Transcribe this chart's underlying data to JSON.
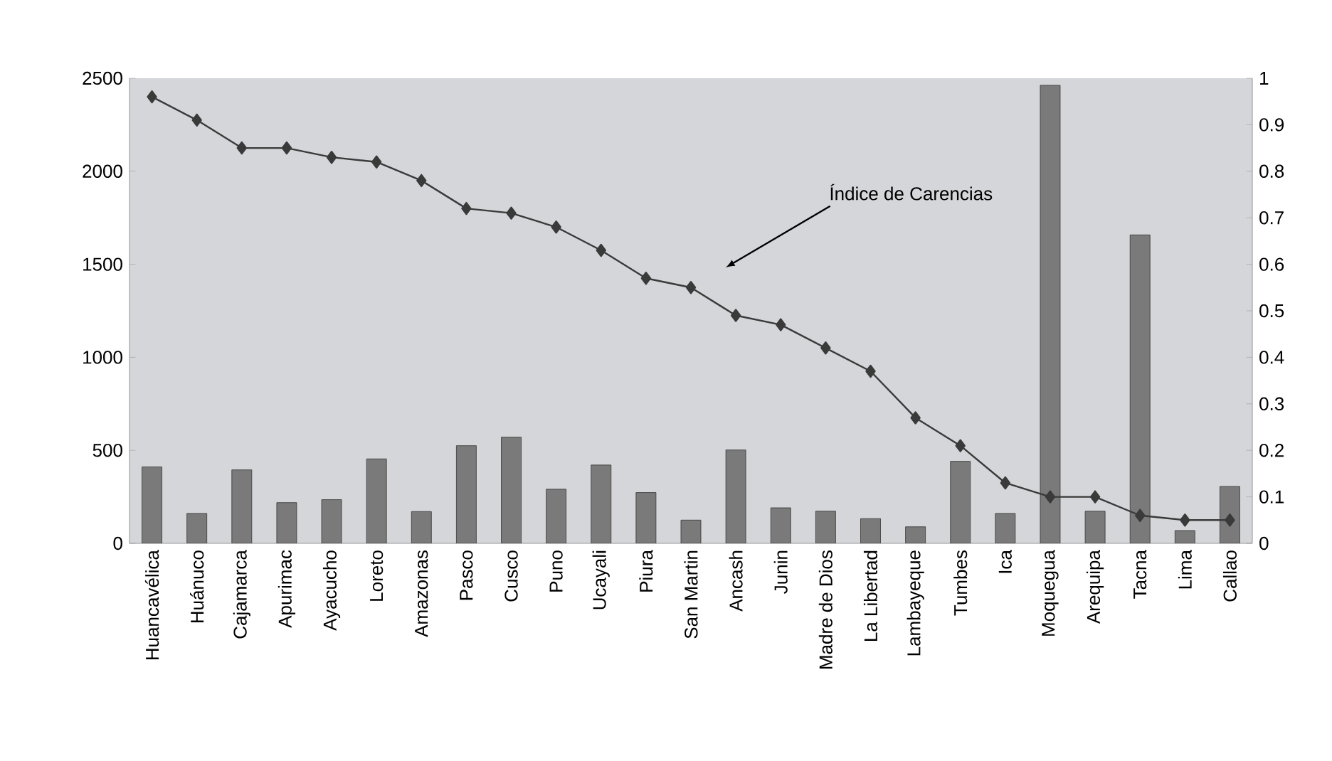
{
  "chart_data": {
    "type": "bar",
    "categories": [
      "Huancavélica",
      "Huánuco",
      "Cajamarca",
      "Apurimac",
      "Ayacucho",
      "Loreto",
      "Amazonas",
      "Pasco",
      "Cusco",
      "Puno",
      "Ucayali",
      "Piura",
      "San Martin",
      "Ancash",
      "Junin",
      "Madre de Dios",
      "La Libertad",
      "Lambayeque",
      "Tumbes",
      "Ica",
      "Moquegua",
      "Arequipa",
      "Tacna",
      "Lima",
      "Callao"
    ],
    "series": [
      {
        "color": "#7a7a7a",
        "values": [
          411,
          161,
          395,
          219,
          235,
          454,
          171,
          525,
          571,
          291,
          421,
          273,
          125,
          502,
          191,
          173,
          133,
          89,
          441,
          161,
          2462,
          173,
          1658,
          69,
          306
        ]
      },
      {
        "type": "line",
        "axis": "y2",
        "color": "#3a3a3a",
        "values": [
          0.96,
          0.91,
          0.85,
          0.85,
          0.83,
          0.82,
          0.78,
          0.72,
          0.71,
          0.68,
          0.63,
          0.57,
          0.55,
          0.49,
          0.47,
          0.42,
          0.37,
          0.27,
          0.21,
          0.13,
          0.1,
          0.1,
          0.06,
          0.05,
          0.05
        ]
      }
    ],
    "ylim": [
      0,
      2500
    ],
    "yticks": [
      0,
      500,
      1000,
      1500,
      2000,
      2500
    ],
    "y2lim": [
      0,
      1
    ],
    "y2ticks": [
      0,
      0.1,
      0.2,
      0.3,
      0.4,
      0.5,
      0.6,
      0.7,
      0.8,
      0.9,
      1
    ],
    "marker": "diamond",
    "grid": false,
    "annotations": [
      "Índice de Carencias"
    ]
  }
}
